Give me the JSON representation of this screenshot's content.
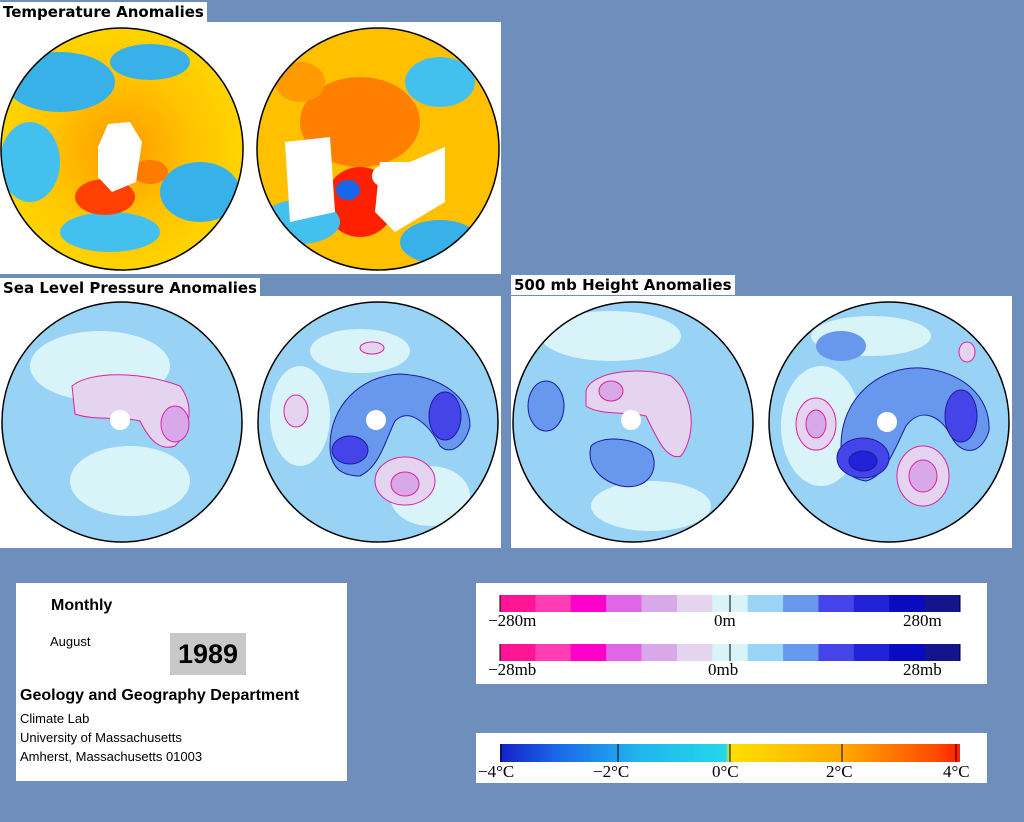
{
  "sections": {
    "temperature": {
      "title": "Temperature Anomalies"
    },
    "slp": {
      "title": "Sea Level Pressure Anomalies"
    },
    "height": {
      "title": "500 mb Height Anomalies"
    }
  },
  "info": {
    "period": "Monthly",
    "month": "August",
    "year": "1989",
    "department": "Geology and Geography Department",
    "lab": "Climate Lab",
    "university": "University of Massachusetts",
    "address": "Amherst, Massachusetts 01003"
  },
  "legends": {
    "height": {
      "min": "−280m",
      "mid": "0m",
      "max": "280m"
    },
    "pressure": {
      "min": "−28mb",
      "mid": "0mb",
      "max": "28mb"
    },
    "temperature": {
      "labels": [
        "−4°C",
        "−2°C",
        "0°C",
        "2°C",
        "4°C"
      ]
    }
  },
  "colors": {
    "background": "#6e8fbb",
    "anomaly_scale": [
      "#ff1493",
      "#ff3cb4",
      "#ff00cc",
      "#e066e6",
      "#d8a8e8",
      "#e4d4f0",
      "#d8f4f8",
      "#9ad4f4",
      "#6898ee",
      "#4444e8",
      "#2222d8",
      "#0a0ac0",
      "#14148c"
    ],
    "temperature_scale": [
      "#1420c8",
      "#1a66e8",
      "#22b4ee",
      "#22d8e8",
      "#ffe000",
      "#ffb400",
      "#ff7800",
      "#ff3000"
    ]
  }
}
